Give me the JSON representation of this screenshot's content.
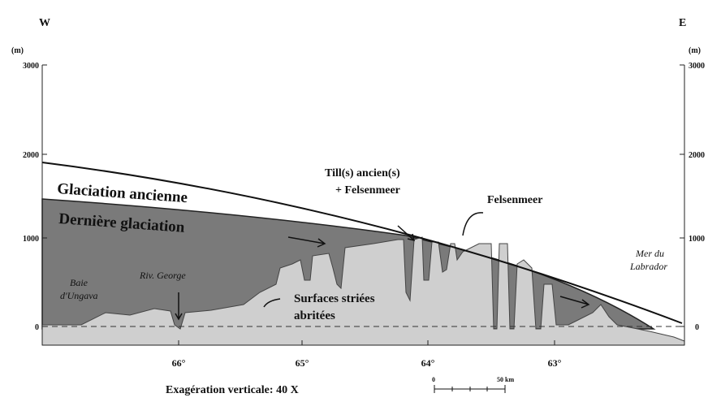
{
  "header": {
    "west": "W",
    "east": "E"
  },
  "left_axis": {
    "unit": "(m)",
    "ticks": [
      "3000",
      "2000",
      "1000",
      "0"
    ]
  },
  "right_axis": {
    "unit": "(m)",
    "ticks": [
      "3000",
      "2000",
      "1000",
      "0"
    ]
  },
  "x_axis": {
    "ticks": [
      "66°",
      "65°",
      "64°",
      "63°"
    ]
  },
  "labels": {
    "ancient": "Glaciation ancienne",
    "last": "Dernière glaciation",
    "till1": "Till(s) ancien(s)",
    "till2": "+ Felsenmeer",
    "felsenmeer": "Felsenmeer",
    "mer1": "Mer du",
    "mer2": "Labrador",
    "baie1": "Baie",
    "baie2": "d'Ungava",
    "riv": "Riv. George",
    "surf1": "Surfaces striées",
    "surf2": "abritées"
  },
  "footer": {
    "exaggeration": "Exagération verticale:  40 X",
    "scale_start": "0",
    "scale_end": "50 km"
  }
}
